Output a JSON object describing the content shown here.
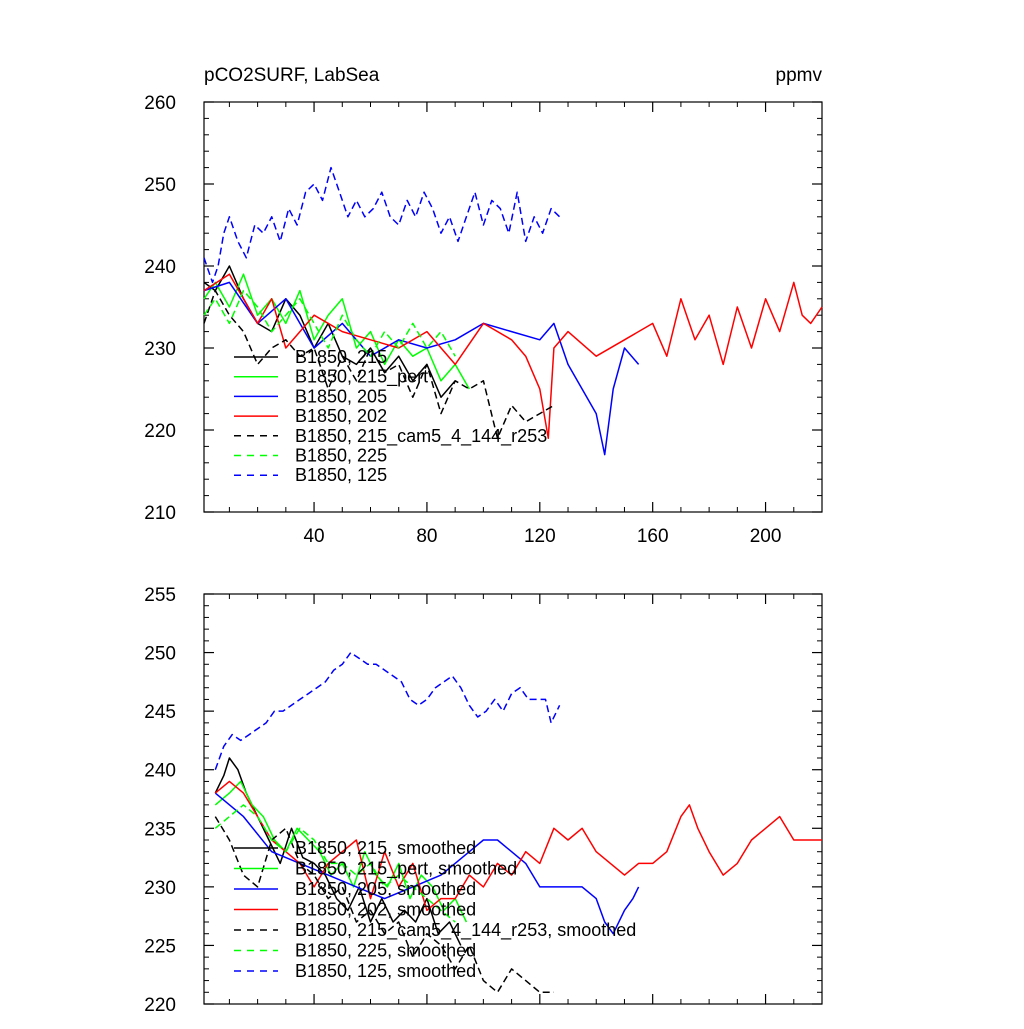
{
  "chart_data": [
    {
      "type": "line",
      "title": "pCO2SURF, LabSea",
      "units": "ppmv",
      "xlim": [
        1,
        220
      ],
      "ylim": [
        210,
        260
      ],
      "xticks": [
        40,
        80,
        120,
        160,
        200
      ],
      "yticks": [
        210,
        220,
        230,
        240,
        250,
        260
      ],
      "grid": false,
      "legend_position": "bottom-left",
      "series": [
        {
          "name": "B1850, 215",
          "color": "#000000",
          "dash": "solid",
          "x": [
            1,
            5,
            10,
            15,
            20,
            25,
            30,
            35,
            40,
            45,
            50,
            55,
            60,
            65,
            70,
            75,
            80,
            85,
            90
          ],
          "y": [
            238,
            237,
            240,
            236,
            233,
            232,
            236,
            234,
            230,
            233,
            229,
            228,
            230,
            227,
            229,
            226,
            228,
            224,
            226
          ]
        },
        {
          "name": "B1850, 215_pert",
          "color": "#00ff00",
          "dash": "solid",
          "x": [
            1,
            5,
            10,
            15,
            20,
            25,
            30,
            35,
            40,
            45,
            50,
            55,
            60,
            65,
            70,
            75,
            80,
            85,
            90,
            95
          ],
          "y": [
            236,
            238,
            235,
            239,
            234,
            236,
            233,
            237,
            231,
            234,
            236,
            230,
            232,
            228,
            231,
            229,
            230,
            226,
            228,
            225
          ]
        },
        {
          "name": "B1850, 205",
          "color": "#0000ff",
          "dash": "solid",
          "x": [
            1,
            10,
            20,
            30,
            40,
            50,
            60,
            70,
            80,
            90,
            100,
            110,
            120,
            125,
            130,
            135,
            140,
            143,
            146,
            150,
            155
          ],
          "y": [
            237,
            238,
            233,
            236,
            230,
            233,
            229,
            231,
            230,
            231,
            233,
            232,
            231,
            233,
            228,
            225,
            222,
            217,
            225,
            230,
            228
          ]
        },
        {
          "name": "B1850, 202",
          "color": "#ff0000",
          "dash": "solid",
          "x": [
            1,
            10,
            20,
            25,
            30,
            40,
            50,
            60,
            70,
            80,
            90,
            100,
            110,
            115,
            120,
            123,
            125,
            130,
            140,
            150,
            160,
            165,
            170,
            175,
            180,
            185,
            190,
            195,
            200,
            205,
            210,
            213,
            216,
            220
          ],
          "y": [
            237,
            239,
            233,
            236,
            230,
            234,
            232,
            231,
            230,
            232,
            228,
            233,
            231,
            229,
            225,
            219,
            230,
            232,
            229,
            231,
            233,
            229,
            236,
            231,
            234,
            228,
            235,
            230,
            236,
            232,
            238,
            234,
            233,
            235
          ]
        },
        {
          "name": "B1850, 215_cam5_4_144_r253",
          "color": "#000000",
          "dash": "dashed",
          "x": [
            1,
            5,
            10,
            15,
            20,
            25,
            30,
            35,
            40,
            45,
            50,
            55,
            60,
            65,
            70,
            75,
            80,
            85,
            90,
            95,
            100,
            105,
            110,
            115,
            120,
            125
          ],
          "y": [
            233,
            237,
            234,
            232,
            228,
            230,
            231,
            229,
            230,
            225,
            229,
            226,
            230,
            227,
            228,
            224,
            228,
            222,
            226,
            225,
            226,
            219,
            223,
            221,
            222,
            223
          ]
        },
        {
          "name": "B1850, 225",
          "color": "#00ff00",
          "dash": "dashed",
          "x": [
            1,
            5,
            10,
            15,
            20,
            25,
            30,
            35,
            40,
            45,
            50,
            55,
            60,
            65,
            70,
            75,
            80,
            85,
            90
          ],
          "y": [
            234,
            236,
            233,
            237,
            235,
            232,
            234,
            236,
            233,
            230,
            234,
            231,
            229,
            232,
            230,
            233,
            230,
            232,
            229
          ]
        },
        {
          "name": "B1850, 125",
          "color": "#0000ff",
          "dash": "dashed",
          "x": [
            1,
            4,
            6,
            8,
            10,
            13,
            16,
            19,
            22,
            25,
            28,
            31,
            34,
            37,
            40,
            43,
            46,
            49,
            52,
            55,
            58,
            61,
            64,
            67,
            70,
            73,
            76,
            79,
            82,
            85,
            88,
            91,
            94,
            97,
            100,
            103,
            106,
            109,
            112,
            115,
            118,
            121,
            124,
            127
          ],
          "y": [
            241,
            238,
            240,
            244,
            246,
            243,
            241,
            245,
            244,
            246,
            243,
            247,
            245,
            249,
            250,
            248,
            252,
            249,
            246,
            248,
            246,
            247,
            249,
            246,
            245,
            248,
            246,
            249,
            247,
            244,
            246,
            243,
            246,
            249,
            245,
            248,
            247,
            244,
            249,
            243,
            246,
            244,
            247,
            246
          ]
        }
      ]
    },
    {
      "type": "line",
      "title": "",
      "units": "",
      "xlim": [
        1,
        220
      ],
      "ylim": [
        220,
        255
      ],
      "xticks": [
        40,
        80,
        120,
        160,
        200
      ],
      "yticks": [
        220,
        225,
        230,
        235,
        240,
        245,
        250,
        255
      ],
      "grid": false,
      "legend_position": "bottom-left",
      "series": [
        {
          "name": "B1850, 215, smoothed",
          "color": "#000000",
          "dash": "solid",
          "x": [
            5,
            8,
            10,
            13,
            16,
            20,
            24,
            28,
            32,
            36,
            40,
            44,
            48,
            52,
            56,
            60,
            64,
            68,
            72,
            76,
            80,
            84,
            88,
            92
          ],
          "y": [
            238,
            239.5,
            241,
            240,
            238,
            236,
            234,
            232,
            235,
            232.5,
            232,
            231,
            229,
            228,
            230,
            227,
            229,
            227,
            228,
            227,
            229,
            226,
            227,
            225
          ]
        },
        {
          "name": "B1850, 215_pert, smoothed",
          "color": "#00ff00",
          "dash": "solid",
          "x": [
            5,
            10,
            14,
            18,
            22,
            26,
            30,
            34,
            38,
            42,
            46,
            50,
            54,
            58,
            62,
            66,
            70,
            74,
            78,
            82,
            86,
            90,
            94
          ],
          "y": [
            237,
            238,
            239,
            237,
            236,
            234,
            233,
            235,
            234,
            233,
            231,
            232,
            230,
            233,
            231,
            230,
            232,
            229,
            231,
            230,
            228,
            229,
            227
          ]
        },
        {
          "name": "B1850, 205, smoothed",
          "color": "#0000ff",
          "dash": "solid",
          "x": [
            5,
            15,
            25,
            35,
            45,
            55,
            65,
            75,
            85,
            95,
            100,
            105,
            110,
            115,
            120,
            125,
            130,
            135,
            140,
            143,
            146,
            150,
            153,
            155
          ],
          "y": [
            238,
            236,
            233,
            232,
            231,
            230,
            229,
            230,
            231,
            233,
            234,
            234,
            233,
            232,
            230,
            230,
            230,
            230,
            229,
            227,
            226,
            228,
            229,
            230
          ]
        },
        {
          "name": "B1850, 202, smoothed",
          "color": "#ff0000",
          "dash": "solid",
          "x": [
            5,
            10,
            15,
            20,
            25,
            30,
            35,
            40,
            45,
            50,
            55,
            60,
            65,
            70,
            75,
            80,
            85,
            90,
            95,
            100,
            105,
            110,
            115,
            120,
            125,
            130,
            135,
            140,
            145,
            150,
            155,
            160,
            165,
            170,
            173,
            176,
            180,
            185,
            190,
            195,
            200,
            205,
            210,
            215,
            220
          ],
          "y": [
            238,
            239,
            238,
            236,
            234,
            233,
            232,
            230,
            232,
            233,
            234,
            229,
            233,
            230,
            232,
            228,
            229,
            229,
            231,
            230,
            232,
            231,
            233,
            232,
            235,
            234,
            235,
            233,
            232,
            231,
            232,
            232,
            233,
            236,
            237,
            235,
            233,
            231,
            232,
            234,
            235,
            236,
            234,
            234,
            234
          ]
        },
        {
          "name": "B1850, 215_cam5_4_144_r253, smoothed",
          "color": "#000000",
          "dash": "dashed",
          "x": [
            5,
            10,
            15,
            20,
            25,
            30,
            35,
            40,
            45,
            50,
            55,
            60,
            65,
            70,
            75,
            80,
            85,
            90,
            95,
            100,
            105,
            110,
            115,
            120,
            125
          ],
          "y": [
            236,
            234,
            231,
            230,
            234,
            235,
            232,
            231,
            229,
            230,
            227,
            228,
            226,
            227,
            224,
            226,
            225,
            223,
            225,
            222,
            221,
            223,
            222,
            221,
            221
          ]
        },
        {
          "name": "B1850, 225, smoothed",
          "color": "#00ff00",
          "dash": "dashed",
          "x": [
            5,
            10,
            15,
            20,
            25,
            30,
            35,
            40,
            45,
            50,
            55,
            60,
            65,
            70,
            75,
            80,
            85,
            90
          ],
          "y": [
            235,
            236,
            237,
            236,
            234,
            233,
            235,
            234,
            232,
            232,
            231,
            232,
            230,
            231,
            230,
            229,
            228,
            227
          ]
        },
        {
          "name": "B1850, 125, smoothed",
          "color": "#0000ff",
          "dash": "dashed",
          "x": [
            5,
            8,
            11,
            14,
            17,
            20,
            23,
            26,
            29,
            32,
            35,
            38,
            41,
            44,
            47,
            50,
            53,
            56,
            59,
            62,
            65,
            68,
            71,
            74,
            77,
            80,
            83,
            86,
            89,
            92,
            95,
            98,
            101,
            104,
            107,
            110,
            113,
            116,
            119,
            122,
            124,
            127
          ],
          "y": [
            240,
            242,
            243,
            242.5,
            243,
            243.5,
            244,
            245,
            245,
            245.5,
            246,
            246.5,
            247,
            247.5,
            248.5,
            249,
            250,
            249.5,
            249,
            249,
            248.5,
            248,
            247.5,
            246,
            245.5,
            246,
            247,
            247.5,
            248,
            247,
            245.5,
            244.5,
            245,
            246,
            245,
            246.5,
            247,
            246,
            246,
            246,
            244,
            245.5
          ]
        }
      ]
    }
  ]
}
